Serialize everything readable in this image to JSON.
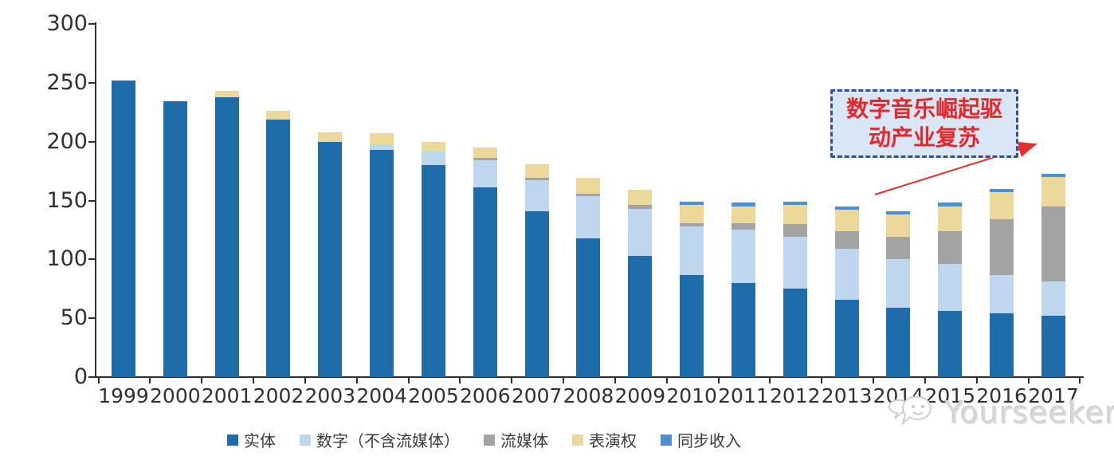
{
  "annotation": {
    "line1": "数字音乐崛起驱",
    "line2": "动产业复苏",
    "text_color": "#e4282c",
    "box_fill": "#d9e6f5",
    "box_border": "#35508f",
    "arrow_color": "#e43030"
  },
  "watermark": {
    "text": "Yourseeker",
    "color": "#d7d7d7"
  },
  "axis": {
    "y_tick_labels": [
      "0",
      "50",
      "100",
      "150",
      "200",
      "250",
      "300"
    ],
    "x_tick_labels": [
      "1999",
      "2000",
      "2001",
      "2002",
      "2003",
      "2004",
      "2005",
      "2006",
      "2007",
      "2008",
      "2009",
      "2010",
      "2011",
      "2012",
      "2013",
      "2014",
      "2015",
      "2016",
      "2017"
    ]
  },
  "chart_data": {
    "type": "bar",
    "stacked": true,
    "title": "",
    "xlabel": "",
    "ylabel": "",
    "ylim": [
      0,
      300
    ],
    "yticks": [
      0,
      50,
      100,
      150,
      200,
      250,
      300
    ],
    "grid": false,
    "legend_position": "bottom",
    "categories": [
      1999,
      2000,
      2001,
      2002,
      2003,
      2004,
      2005,
      2006,
      2007,
      2008,
      2009,
      2010,
      2011,
      2012,
      2013,
      2014,
      2015,
      2016,
      2017
    ],
    "series": [
      {
        "name": "实体",
        "color": "#1e6caa",
        "values": [
          252,
          234,
          238,
          219,
          200,
          193,
          180,
          161,
          141,
          118,
          103,
          87,
          80,
          75,
          66,
          59,
          56,
          54,
          52
        ]
      },
      {
        "name": "数字（不含流媒体）",
        "color": "#bed7ee",
        "values": [
          0,
          0,
          0,
          0,
          0,
          5,
          12,
          23,
          26,
          36,
          40,
          41,
          45,
          44,
          43,
          41,
          40,
          33,
          29
        ]
      },
      {
        "name": "流媒体",
        "color": "#a3a3a3",
        "values": [
          0,
          0,
          0,
          0,
          0,
          0,
          0,
          2,
          2,
          2,
          3,
          3,
          6,
          11,
          15,
          19,
          28,
          47,
          64
        ]
      },
      {
        "name": "表演权",
        "color": "#ecd89b",
        "values": [
          0,
          0,
          5,
          7,
          8,
          9,
          8,
          9,
          12,
          13,
          13,
          15,
          14,
          16,
          18,
          19,
          21,
          23,
          25
        ]
      },
      {
        "name": "同步收入",
        "color": "#4e8fd0",
        "values": [
          0,
          0,
          0,
          0,
          0,
          0,
          0,
          0,
          0,
          0,
          0,
          3,
          3,
          3,
          3,
          3,
          3,
          3,
          3
        ]
      }
    ],
    "totals": [
      252,
      234,
      243,
      226,
      208,
      207,
      200,
      195,
      181,
      169,
      159,
      149,
      148,
      149,
      145,
      141,
      148,
      160,
      173
    ]
  }
}
